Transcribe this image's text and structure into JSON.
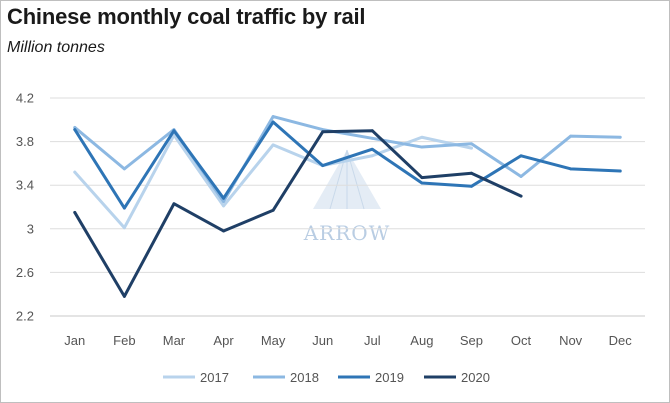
{
  "chart_data": {
    "type": "line",
    "title": "Chinese monthly coal traffic by rail",
    "subtitle": "Million tonnes",
    "categories": [
      "Jan",
      "Feb",
      "Mar",
      "Apr",
      "May",
      "Jun",
      "Jul",
      "Aug",
      "Sep",
      "Oct",
      "Nov",
      "Dec"
    ],
    "ylim": [
      2.2,
      4.2
    ],
    "yticks": [
      "4.2",
      "3.8",
      "3.4",
      "3",
      "2.6",
      "2.2"
    ],
    "grid": true,
    "legend_position": "bottom",
    "series": [
      {
        "name": "2017",
        "color": "#b8d3ec",
        "values": [
          3.52,
          3.01,
          3.86,
          3.21,
          3.77,
          3.58,
          3.67,
          3.84,
          3.74,
          null,
          null,
          null
        ]
      },
      {
        "name": "2018",
        "color": "#8cb8e2",
        "values": [
          3.93,
          3.55,
          3.91,
          3.25,
          4.03,
          3.91,
          3.83,
          3.75,
          3.78,
          3.48,
          3.85,
          3.84
        ]
      },
      {
        "name": "2019",
        "color": "#2e75b6",
        "values": [
          3.91,
          3.19,
          3.9,
          3.28,
          3.98,
          3.58,
          3.73,
          3.42,
          3.39,
          3.67,
          3.55,
          3.53
        ]
      },
      {
        "name": "2020",
        "color": "#1f3f66",
        "values": [
          3.15,
          2.38,
          3.23,
          2.98,
          3.17,
          3.89,
          3.9,
          3.47,
          3.51,
          3.3,
          null,
          null
        ]
      }
    ],
    "watermark": "ARROW"
  }
}
